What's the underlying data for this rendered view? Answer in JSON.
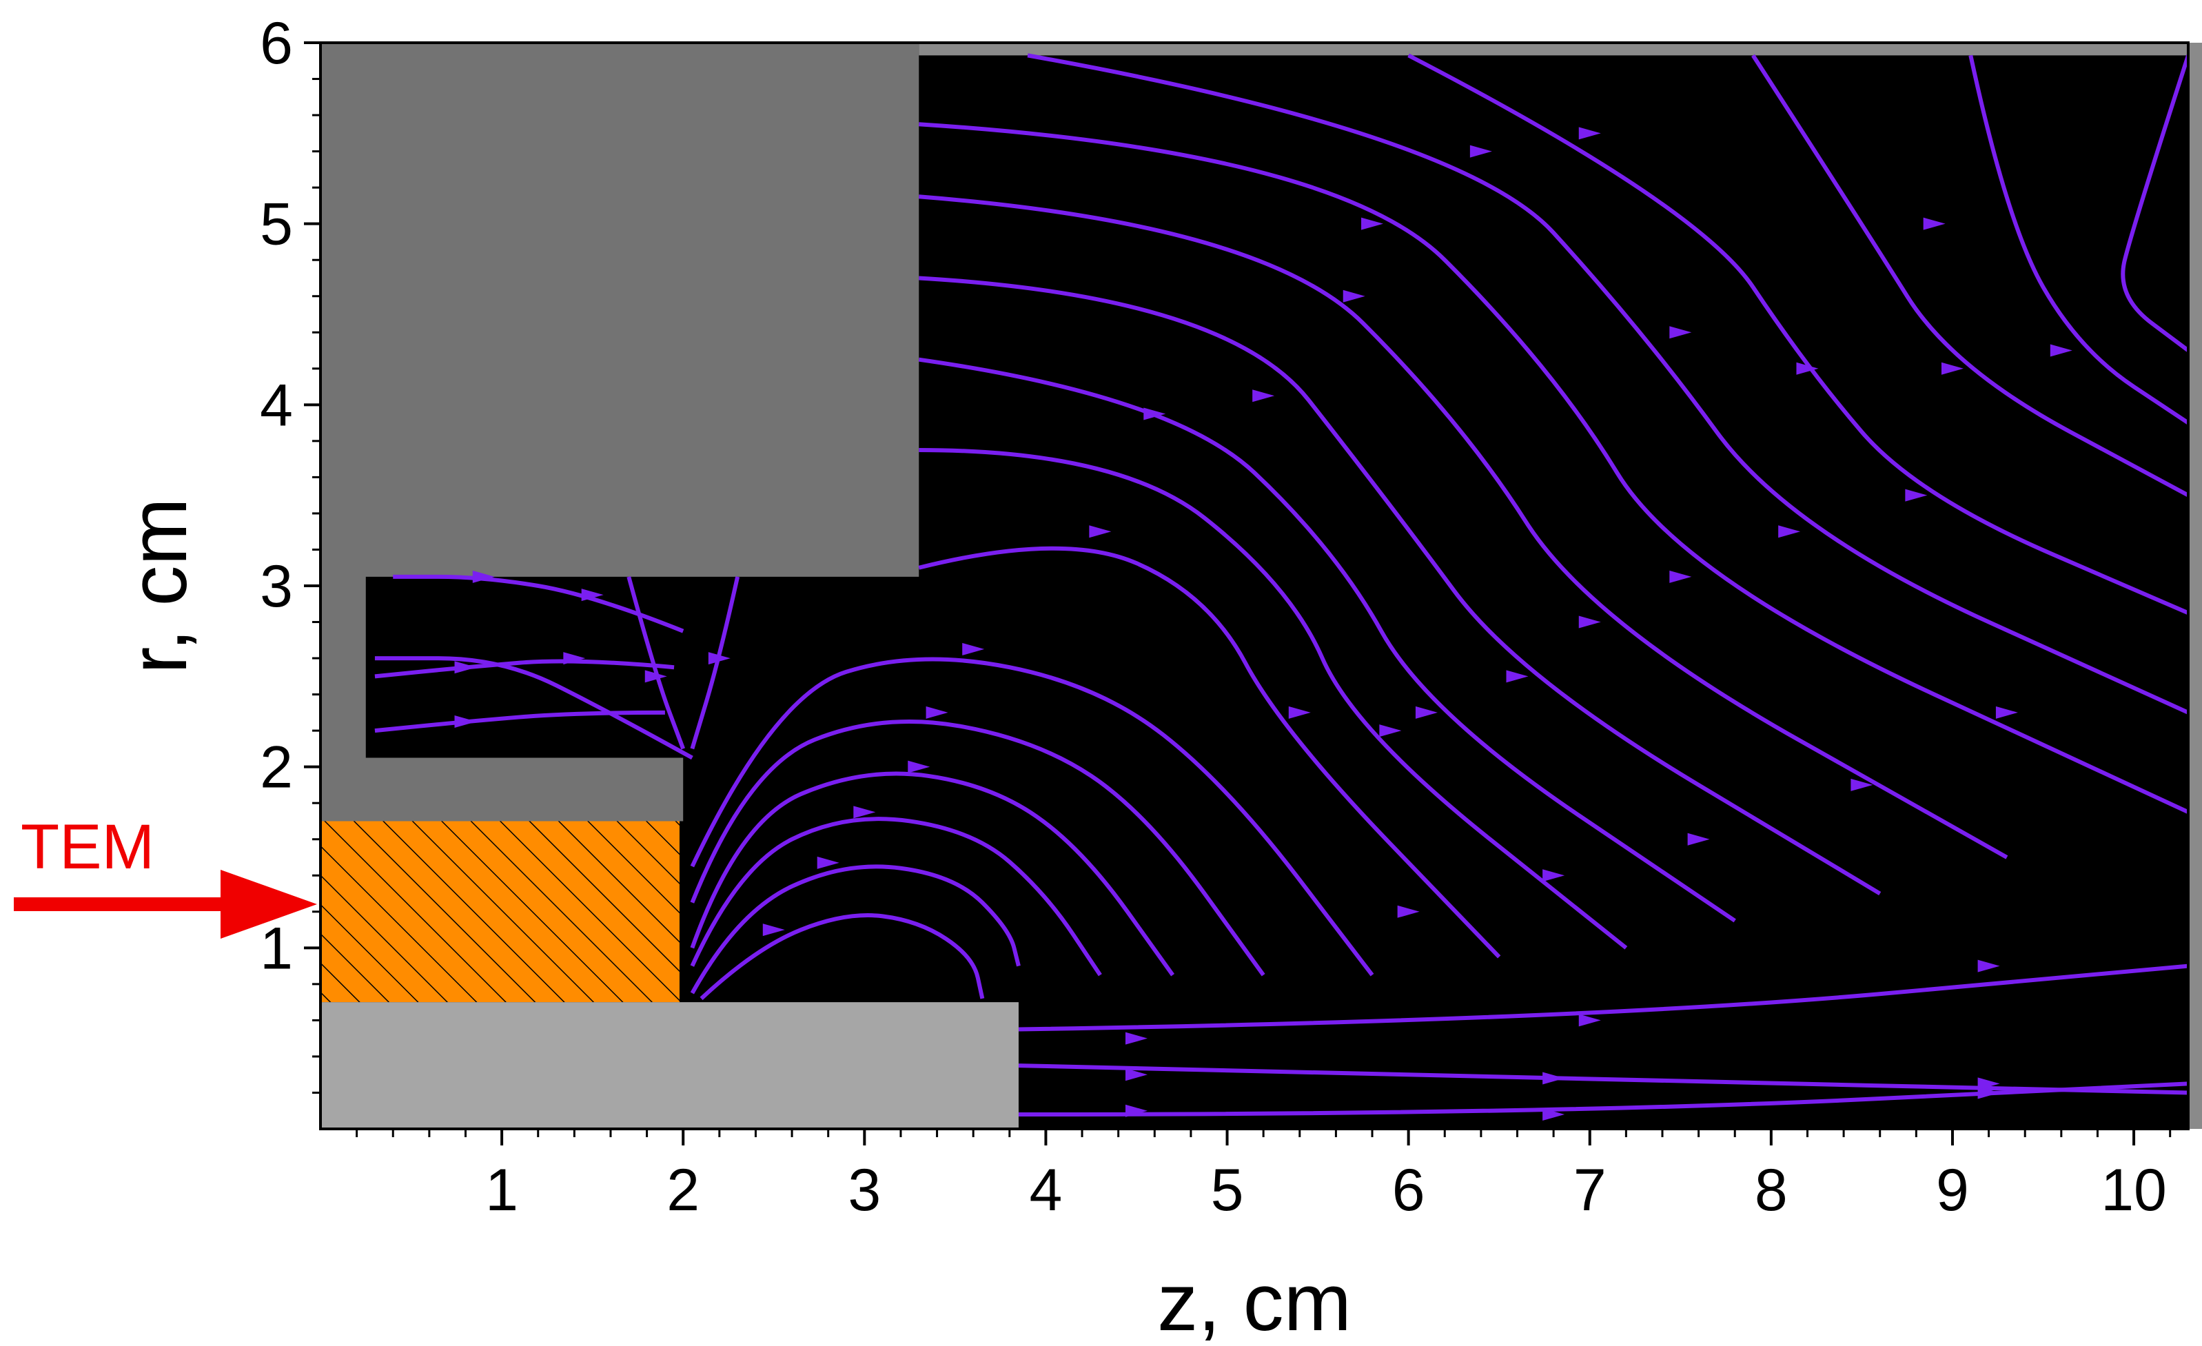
{
  "chart_data": {
    "type": "streamline-field",
    "xlabel": "z, cm",
    "ylabel": "r, cm",
    "xlim": [
      0,
      10.3
    ],
    "ylim": [
      0,
      6
    ],
    "xticks": [
      "1",
      "2",
      "3",
      "4",
      "5",
      "6",
      "7",
      "8",
      "9",
      "10"
    ],
    "yticks": [
      "1",
      "2",
      "3",
      "4",
      "5",
      "6"
    ],
    "field_region_color": "#000000",
    "streamline_color": "#7a1ff0",
    "port_annotation": {
      "label": "TEM",
      "color": "#f00000",
      "r": 1.2
    },
    "regions": [
      {
        "name": "outer-conductor",
        "color": "#737373",
        "polygon": [
          [
            0,
            6
          ],
          [
            3.3,
            6
          ],
          [
            3.3,
            3.05
          ],
          [
            0.25,
            3.05
          ],
          [
            0.25,
            2.05
          ],
          [
            2.0,
            2.05
          ],
          [
            2.0,
            1.7
          ],
          [
            0,
            1.7
          ]
        ]
      },
      {
        "name": "dielectric",
        "color": "#ff8c00",
        "hatched": true,
        "polygon": [
          [
            0,
            0.7
          ],
          [
            1.98,
            0.7
          ],
          [
            1.98,
            1.7
          ],
          [
            0,
            1.7
          ]
        ]
      },
      {
        "name": "inner-conductor",
        "color": "#a6a6a6",
        "polygon": [
          [
            0,
            0
          ],
          [
            3.85,
            0
          ],
          [
            3.85,
            0.7
          ],
          [
            0,
            0.7
          ]
        ]
      },
      {
        "name": "right-boundary",
        "color": "#8a8a8a",
        "polygon": [
          [
            10.3,
            0
          ],
          [
            10.42,
            0
          ],
          [
            10.42,
            6
          ],
          [
            10.3,
            6
          ]
        ]
      },
      {
        "name": "top-boundary",
        "color": "#8a8a8a",
        "polygon": [
          [
            3.3,
            5.93
          ],
          [
            10.42,
            5.93
          ],
          [
            10.42,
            6
          ],
          [
            3.3,
            6
          ]
        ]
      }
    ],
    "streamlines": [
      [
        [
          2.1,
          0.72
        ],
        [
          2.4,
          1.0
        ],
        [
          2.9,
          1.2
        ],
        [
          3.3,
          1.15
        ],
        [
          3.6,
          0.95
        ],
        [
          3.65,
          0.72
        ]
      ],
      [
        [
          2.05,
          0.75
        ],
        [
          2.3,
          1.2
        ],
        [
          2.9,
          1.48
        ],
        [
          3.5,
          1.4
        ],
        [
          3.8,
          1.1
        ],
        [
          3.85,
          0.9
        ]
      ],
      [
        [
          2.05,
          0.9
        ],
        [
          2.3,
          1.45
        ],
        [
          2.9,
          1.75
        ],
        [
          3.6,
          1.65
        ],
        [
          4.0,
          1.3
        ],
        [
          4.3,
          0.85
        ]
      ],
      [
        [
          2.05,
          1.0
        ],
        [
          2.3,
          1.7
        ],
        [
          3.0,
          2.0
        ],
        [
          3.7,
          1.9
        ],
        [
          4.2,
          1.55
        ],
        [
          4.7,
          0.85
        ]
      ],
      [
        [
          2.05,
          1.25
        ],
        [
          2.35,
          2.0
        ],
        [
          3.1,
          2.3
        ],
        [
          3.95,
          2.15
        ],
        [
          4.55,
          1.75
        ],
        [
          5.2,
          0.85
        ]
      ],
      [
        [
          2.05,
          1.45
        ],
        [
          2.5,
          2.4
        ],
        [
          3.3,
          2.65
        ],
        [
          4.3,
          2.45
        ],
        [
          5.0,
          1.9
        ],
        [
          5.8,
          0.85
        ]
      ],
      [
        [
          3.3,
          3.1
        ],
        [
          4.1,
          3.3
        ],
        [
          4.9,
          2.95
        ],
        [
          5.3,
          2.2
        ],
        [
          6.5,
          0.95
        ]
      ],
      [
        [
          3.3,
          3.75
        ],
        [
          4.4,
          3.75
        ],
        [
          5.35,
          3.0
        ],
        [
          5.7,
          2.2
        ],
        [
          7.2,
          1.0
        ]
      ],
      [
        [
          3.3,
          4.25
        ],
        [
          4.7,
          4.05
        ],
        [
          5.6,
          3.2
        ],
        [
          6.1,
          2.3
        ],
        [
          7.8,
          1.15
        ]
      ],
      [
        [
          3.3,
          4.7
        ],
        [
          5.0,
          4.6
        ],
        [
          5.9,
          3.45
        ],
        [
          6.6,
          2.5
        ],
        [
          8.6,
          1.3
        ]
      ],
      [
        [
          3.3,
          5.15
        ],
        [
          5.2,
          5.0
        ],
        [
          6.3,
          3.9
        ],
        [
          7.0,
          2.8
        ],
        [
          9.3,
          1.5
        ]
      ],
      [
        [
          3.3,
          5.55
        ],
        [
          5.6,
          5.4
        ],
        [
          6.8,
          4.2
        ],
        [
          7.5,
          3.05
        ],
        [
          10.3,
          1.75
        ]
      ],
      [
        [
          3.9,
          5.93
        ],
        [
          6.3,
          5.5
        ],
        [
          7.3,
          4.4
        ],
        [
          8.1,
          3.3
        ],
        [
          10.3,
          2.3
        ]
      ],
      [
        [
          6.0,
          5.93
        ],
        [
          7.6,
          5.1
        ],
        [
          8.2,
          4.2
        ],
        [
          8.8,
          3.5
        ],
        [
          10.3,
          2.85
        ]
      ],
      [
        [
          7.9,
          5.93
        ],
        [
          8.5,
          5.0
        ],
        [
          9.0,
          4.2
        ],
        [
          10.3,
          3.5
        ]
      ],
      [
        [
          9.1,
          5.93
        ],
        [
          9.3,
          5.0
        ],
        [
          9.7,
          4.3
        ],
        [
          10.3,
          3.9
        ]
      ],
      [
        [
          10.3,
          5.93
        ],
        [
          10.0,
          5.0
        ],
        [
          9.9,
          4.6
        ],
        [
          10.3,
          4.3
        ]
      ],
      [
        [
          3.85,
          0.35
        ],
        [
          6.8,
          0.28
        ],
        [
          10.3,
          0.2
        ]
      ],
      [
        [
          3.85,
          0.08
        ],
        [
          6.8,
          0.08
        ],
        [
          10.3,
          0.25
        ]
      ],
      [
        [
          3.85,
          0.55
        ],
        [
          7.0,
          0.6
        ],
        [
          10.3,
          0.9
        ]
      ],
      [
        [
          2.0,
          2.75
        ],
        [
          1.5,
          2.95
        ],
        [
          0.9,
          3.05
        ],
        [
          0.4,
          3.05
        ]
      ],
      [
        [
          1.95,
          2.55
        ],
        [
          1.4,
          2.6
        ],
        [
          0.8,
          2.55
        ],
        [
          0.3,
          2.5
        ]
      ],
      [
        [
          1.9,
          2.3
        ],
        [
          1.4,
          2.3
        ],
        [
          0.8,
          2.25
        ],
        [
          0.3,
          2.2
        ]
      ],
      [
        [
          1.7,
          3.05
        ],
        [
          1.85,
          2.5
        ],
        [
          2.0,
          2.1
        ]
      ],
      [
        [
          2.3,
          3.05
        ],
        [
          2.2,
          2.6
        ],
        [
          2.05,
          2.1
        ]
      ],
      [
        [
          2.05,
          2.05
        ],
        [
          1.6,
          2.3
        ],
        [
          1.0,
          2.6
        ],
        [
          0.3,
          2.6
        ]
      ]
    ],
    "arrows": [
      [
        2.5,
        1.1
      ],
      [
        2.8,
        1.47
      ],
      [
        3.0,
        1.75
      ],
      [
        3.3,
        2.0
      ],
      [
        3.4,
        2.3
      ],
      [
        3.6,
        2.65
      ],
      [
        4.3,
        3.3
      ],
      [
        4.6,
        3.95
      ],
      [
        5.2,
        4.05
      ],
      [
        5.7,
        4.6
      ],
      [
        5.8,
        5.0
      ],
      [
        6.4,
        5.4
      ],
      [
        7.0,
        5.5
      ],
      [
        7.5,
        4.4
      ],
      [
        8.2,
        4.2
      ],
      [
        8.9,
        5.0
      ],
      [
        9.0,
        4.2
      ],
      [
        9.6,
        4.3
      ],
      [
        6.8,
        0.28
      ],
      [
        6.8,
        0.08
      ],
      [
        7.0,
        0.6
      ],
      [
        9.2,
        0.2
      ],
      [
        9.2,
        0.25
      ],
      [
        9.2,
        0.9
      ],
      [
        4.5,
        0.3
      ],
      [
        4.5,
        0.1
      ],
      [
        4.5,
        0.5
      ],
      [
        5.4,
        2.3
      ],
      [
        5.9,
        2.2
      ],
      [
        6.1,
        2.3
      ],
      [
        6.6,
        2.5
      ],
      [
        7.0,
        2.8
      ],
      [
        7.5,
        3.05
      ],
      [
        8.1,
        3.3
      ],
      [
        8.8,
        3.5
      ],
      [
        0.9,
        3.05
      ],
      [
        0.8,
        2.55
      ],
      [
        0.8,
        2.25
      ],
      [
        1.5,
        2.95
      ],
      [
        1.4,
        2.6
      ],
      [
        1.85,
        2.5
      ],
      [
        2.2,
        2.6
      ],
      [
        6.0,
        1.2
      ],
      [
        6.8,
        1.4
      ],
      [
        7.6,
        1.6
      ],
      [
        8.5,
        1.9
      ],
      [
        9.3,
        2.3
      ]
    ]
  }
}
